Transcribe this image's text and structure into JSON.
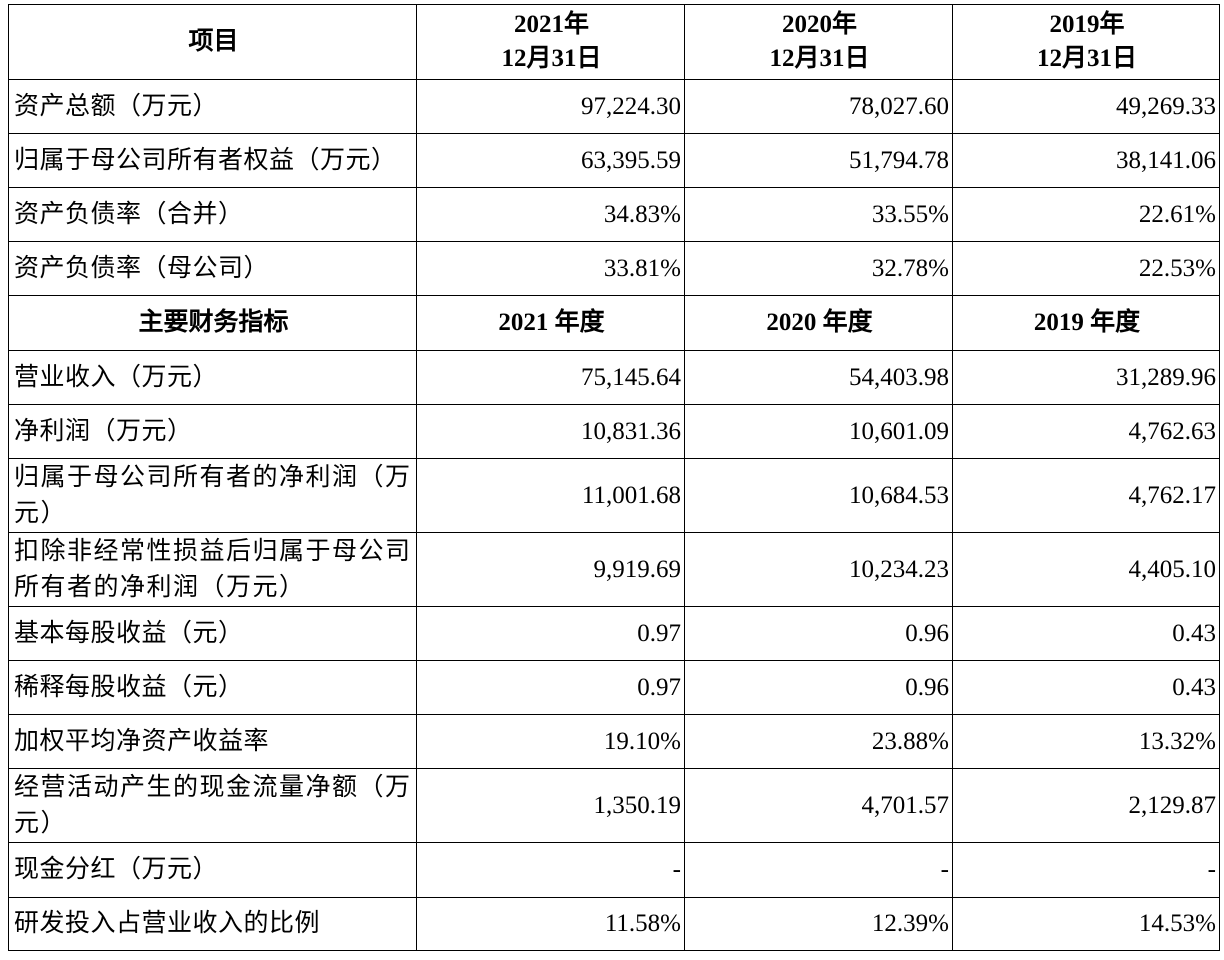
{
  "table": {
    "header1": [
      "项目",
      "2021年\n12月31日",
      "2020年\n12月31日",
      "2019年\n12月31日"
    ],
    "rows1": [
      {
        "label": "资产总额（万元）",
        "values": [
          "97,224.30",
          "78,027.60",
          "49,269.33"
        ]
      },
      {
        "label": "归属于母公司所有者权益（万元）",
        "values": [
          "63,395.59",
          "51,794.78",
          "38,141.06"
        ]
      },
      {
        "label": "资产负债率（合并）",
        "values": [
          "34.83%",
          "33.55%",
          "22.61%"
        ]
      },
      {
        "label": "资产负债率（母公司）",
        "values": [
          "33.81%",
          "32.78%",
          "22.53%"
        ]
      }
    ],
    "header2": [
      "主要财务指标",
      "2021 年度",
      "2020 年度",
      "2019 年度"
    ],
    "rows2": [
      {
        "label": "营业收入（万元）",
        "values": [
          "75,145.64",
          "54,403.98",
          "31,289.96"
        ]
      },
      {
        "label": "净利润（万元）",
        "values": [
          "10,831.36",
          "10,601.09",
          "4,762.63"
        ]
      },
      {
        "label": "归属于母公司所有者的净利润（万元）",
        "values": [
          "11,001.68",
          "10,684.53",
          "4,762.17"
        ]
      },
      {
        "label": "扣除非经常性损益后归属于母公司所有者的净利润（万元）",
        "values": [
          "9,919.69",
          "10,234.23",
          "4,405.10"
        ]
      },
      {
        "label": "基本每股收益（元）",
        "values": [
          "0.97",
          "0.96",
          "0.43"
        ]
      },
      {
        "label": "稀释每股收益（元）",
        "values": [
          "0.97",
          "0.96",
          "0.43"
        ]
      },
      {
        "label": "加权平均净资产收益率",
        "values": [
          "19.10%",
          "23.88%",
          "13.32%"
        ]
      },
      {
        "label": "经营活动产生的现金流量净额（万元）",
        "values": [
          "1,350.19",
          "4,701.57",
          "2,129.87"
        ]
      },
      {
        "label": "现金分红（万元）",
        "values": [
          "-",
          "-",
          "-"
        ]
      },
      {
        "label": "研发投入占营业收入的比例",
        "values": [
          "11.58%",
          "12.39%",
          "14.53%"
        ]
      }
    ]
  }
}
